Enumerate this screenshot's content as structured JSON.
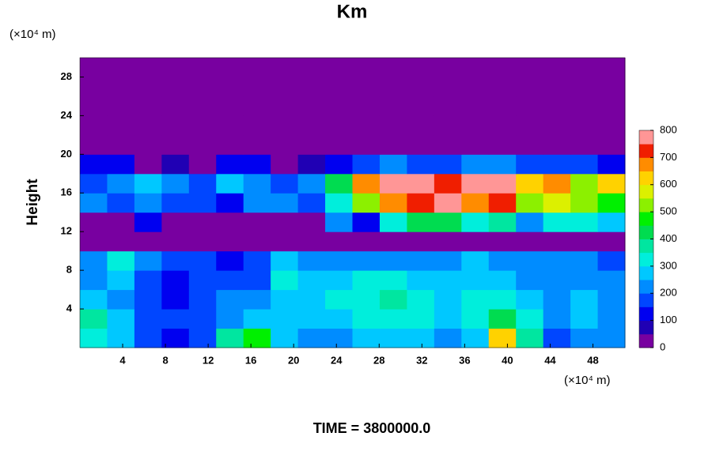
{
  "chart_data": {
    "type": "heatmap",
    "title": "Km",
    "y_unit": "(×10⁴ m)",
    "x_unit": "(×10⁴ m)",
    "ylabel": "Height",
    "footer": "TIME = 3800000.0",
    "xlim": [
      0,
      51
    ],
    "ylim": [
      0,
      30
    ],
    "xticks": [
      4,
      8,
      12,
      16,
      20,
      24,
      28,
      32,
      36,
      40,
      44,
      48
    ],
    "yticks": [
      4,
      8,
      12,
      16,
      20,
      24,
      28
    ],
    "clim": [
      0,
      800
    ],
    "cticks": [
      0,
      100,
      200,
      300,
      400,
      500,
      600,
      700,
      800
    ],
    "colors": [
      "#7800a0",
      "#2000b4",
      "#0000f0",
      "#0046ff",
      "#008cff",
      "#00c8ff",
      "#00eedc",
      "#00e6a0",
      "#00dc50",
      "#00f000",
      "#8cf000",
      "#dcf000",
      "#ffd200",
      "#ff8c00",
      "#f01e00",
      "#ff9696"
    ],
    "z": [
      [
        300,
        250,
        150,
        120,
        150,
        350,
        450,
        250,
        200,
        200,
        250,
        250,
        250,
        200,
        250,
        600,
        350,
        150,
        200,
        200
      ],
      [
        350,
        280,
        180,
        150,
        150,
        200,
        250,
        250,
        250,
        250,
        300,
        330,
        300,
        250,
        300,
        400,
        330,
        200,
        250,
        220
      ],
      [
        250,
        200,
        150,
        130,
        170,
        200,
        200,
        250,
        280,
        300,
        330,
        350,
        330,
        280,
        300,
        300,
        250,
        230,
        250,
        200
      ],
      [
        200,
        250,
        180,
        120,
        150,
        180,
        150,
        300,
        250,
        280,
        300,
        300,
        280,
        250,
        270,
        250,
        220,
        220,
        230,
        200
      ],
      [
        200,
        300,
        200,
        150,
        150,
        130,
        150,
        250,
        200,
        220,
        230,
        230,
        220,
        230,
        250,
        230,
        200,
        200,
        200,
        180
      ],
      [
        0,
        0,
        0,
        0,
        0,
        0,
        0,
        0,
        0,
        0,
        0,
        0,
        0,
        0,
        0,
        0,
        0,
        0,
        0,
        0
      ],
      [
        0,
        0,
        100,
        0,
        0,
        0,
        0,
        0,
        0,
        200,
        100,
        300,
        400,
        400,
        300,
        350,
        200,
        300,
        300,
        250
      ],
      [
        200,
        150,
        200,
        150,
        150,
        100,
        200,
        200,
        150,
        300,
        500,
        650,
        700,
        800,
        650,
        700,
        500,
        550,
        500,
        450
      ],
      [
        150,
        200,
        250,
        200,
        150,
        250,
        200,
        150,
        200,
        400,
        650,
        800,
        750,
        700,
        800,
        750,
        600,
        650,
        500,
        600
      ],
      [
        100,
        100,
        0,
        50,
        0,
        100,
        100,
        0,
        50,
        100,
        150,
        200,
        150,
        150,
        200,
        200,
        150,
        150,
        150,
        100
      ],
      [
        0,
        0,
        0,
        0,
        0,
        0,
        0,
        0,
        0,
        0,
        0,
        0,
        0,
        0,
        0,
        0,
        0,
        0,
        0,
        0
      ],
      [
        0,
        0,
        0,
        0,
        0,
        0,
        0,
        0,
        0,
        0,
        0,
        0,
        0,
        0,
        0,
        0,
        0,
        0,
        0,
        0
      ],
      [
        0,
        0,
        0,
        0,
        0,
        0,
        0,
        0,
        0,
        0,
        0,
        0,
        0,
        0,
        0,
        0,
        0,
        0,
        0,
        0
      ],
      [
        0,
        0,
        0,
        0,
        0,
        0,
        0,
        0,
        0,
        0,
        0,
        0,
        0,
        0,
        0,
        0,
        0,
        0,
        0,
        0
      ],
      [
        0,
        0,
        0,
        0,
        0,
        0,
        0,
        0,
        0,
        0,
        0,
        0,
        0,
        0,
        0,
        0,
        0,
        0,
        0,
        0
      ]
    ]
  }
}
